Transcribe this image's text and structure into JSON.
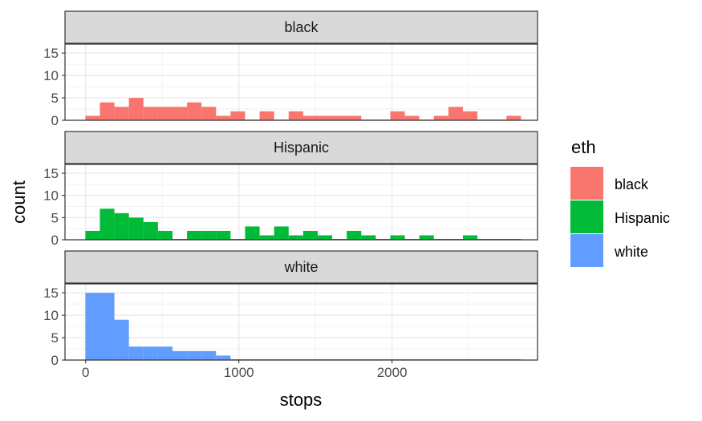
{
  "chart_data": {
    "type": "histogram",
    "xlabel": "stops",
    "ylabel": "count",
    "x_ticks": [
      0,
      1000,
      2000
    ],
    "x_tick_labels": [
      "0",
      "1000",
      "2000"
    ],
    "y_ticks": [
      0,
      5,
      10,
      15
    ],
    "y_tick_labels": [
      "0",
      "5",
      "10",
      "15"
    ],
    "xlim": [
      -135,
      2950
    ],
    "ylim": [
      0,
      17
    ],
    "bins": 30,
    "bin_start": -2,
    "bin_width": 94.8,
    "grid": true,
    "legend": {
      "title": "eth",
      "position": "right"
    },
    "series": [
      {
        "name": "black",
        "color": "#F8766D",
        "counts": [
          1,
          4,
          3,
          5,
          3,
          3,
          3,
          4,
          3,
          1,
          2,
          0,
          2,
          0,
          2,
          1,
          1,
          1,
          1,
          0,
          0,
          2,
          1,
          0,
          1,
          3,
          2,
          0,
          0,
          1
        ]
      },
      {
        "name": "Hispanic",
        "color": "#00BA38",
        "counts": [
          2,
          7,
          6,
          5,
          4,
          2,
          0,
          2,
          2,
          2,
          0,
          3,
          1,
          3,
          1,
          2,
          1,
          0,
          2,
          1,
          0,
          1,
          0,
          1,
          0,
          0,
          1,
          0,
          0,
          0
        ]
      },
      {
        "name": "white",
        "color": "#619CFF",
        "counts": [
          15,
          15,
          9,
          3,
          3,
          3,
          2,
          2,
          2,
          1,
          0,
          0,
          0,
          0,
          0,
          0,
          0,
          0,
          0,
          0,
          0,
          0,
          0,
          0,
          0,
          0,
          0,
          0,
          0,
          0
        ]
      }
    ]
  }
}
